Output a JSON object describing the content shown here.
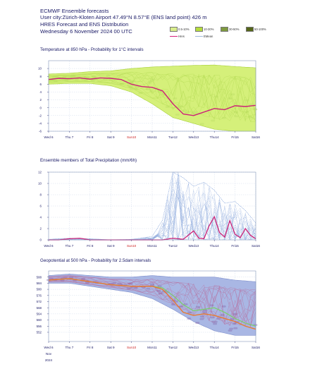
{
  "header": {
    "title": "ECMWF Ensemble forecasts",
    "location": "User city:Zürich-Kloten Airport 47.49°N 8.57°E (ENS land point) 426 m",
    "subtitle": "HRES Forecast and ENS Distribution",
    "date": "Wednesday 6 November 2024 00 UTC"
  },
  "legend": {
    "bands": [
      {
        "label": "0.5-10%",
        "color": "#d9ee8c"
      },
      {
        "label": "10-30%",
        "color": "#b5dd3c"
      },
      {
        "label": "30-50%",
        "color": "#7f9a40"
      },
      {
        "label": "50-100%",
        "color": "#55661a"
      }
    ],
    "lines": [
      {
        "label": "Hres",
        "color": "#d4207c"
      },
      {
        "label": "EMean",
        "color": "#9fb8d8"
      }
    ]
  },
  "colors": {
    "axis": "#1a1a66",
    "grid": "#c8d4e8",
    "sunday": "#cc2222",
    "temp_band": "#d5f07a",
    "temp_band_edge": "#a8d03a",
    "temp_inner": "#c2e26a",
    "hres": "#cc2277",
    "ens_member": "#7f9fd8",
    "z_band": "#a9b7e4",
    "z_inner": "#8a6fb0",
    "z_ctrl": "#7ad06a",
    "z_hres": "#e87a30"
  },
  "xaxis": {
    "ticks": [
      "Wed 6",
      "Thu 7",
      "Fri 8",
      "Sat 9",
      "Sun10",
      "Mon11",
      "Tue12",
      "Wed13",
      "Thu14",
      "Fri15",
      "Sat16"
    ],
    "sunday_index": 4,
    "month": "Nov",
    "year": "2024"
  },
  "chart_data": [
    {
      "type": "area",
      "title": "Temperature at 850 hPa - Probability for 1°C intervals",
      "xlabel": "",
      "ylabel": "",
      "x_unit": "days from Wed 6 Nov 2024 00 UTC",
      "xlim": [
        0,
        10
      ],
      "ylim": [
        -6,
        12
      ],
      "yticks": [
        -6,
        -4,
        -2,
        0,
        2,
        4,
        6,
        8,
        10
      ],
      "grid": true,
      "series": [
        {
          "name": "Hres",
          "x": [
            0,
            0.5,
            1,
            1.5,
            2,
            2.5,
            3,
            3.5,
            4,
            4.5,
            5,
            5.5,
            6,
            6.5,
            7,
            7.5,
            8,
            8.5,
            9,
            9.5,
            10
          ],
          "values": [
            7.2,
            7.5,
            7.4,
            7.6,
            7.3,
            7.6,
            7.5,
            7.2,
            6.0,
            5.4,
            5.2,
            4.3,
            1.0,
            -1.6,
            -2.0,
            -1.1,
            -0.2,
            -0.5,
            0.5,
            0.3,
            0.6
          ]
        },
        {
          "name": "Ensemble upper bound",
          "x": [
            0,
            1,
            2,
            3,
            4,
            5,
            6,
            7,
            8,
            9,
            10
          ],
          "values": [
            8.6,
            8.8,
            9.2,
            9.4,
            10.0,
            10.4,
            10.6,
            10.8,
            10.9,
            10.5,
            10.2
          ]
        },
        {
          "name": "Ensemble lower bound",
          "x": [
            0,
            1,
            2,
            3,
            4,
            5,
            6,
            7,
            8,
            9,
            10
          ],
          "values": [
            6.0,
            6.2,
            6.2,
            5.6,
            4.0,
            1.0,
            -2.5,
            -4.0,
            -5.5,
            -6.0,
            -6.0
          ]
        }
      ]
    },
    {
      "type": "line",
      "title": "Ensemble members of Total Precipitation (mm/6h)",
      "xlabel": "",
      "ylabel": "",
      "x_unit": "days from Wed 6 Nov 2024 00 UTC",
      "xlim": [
        0,
        10
      ],
      "ylim": [
        0,
        12
      ],
      "yticks": [
        0,
        2,
        4,
        6,
        8,
        10,
        12
      ],
      "grid": true,
      "series": [
        {
          "name": "Hres",
          "x": [
            0,
            0.5,
            1,
            1.5,
            2,
            3,
            4,
            5,
            5.5,
            6,
            6.5,
            7,
            7.25,
            7.5,
            7.75,
            8,
            8.25,
            8.5,
            8.75,
            9,
            9.25,
            9.5,
            9.75,
            10
          ],
          "values": [
            0,
            0,
            0.2,
            0.3,
            0,
            0,
            0,
            0,
            0,
            0.3,
            0.1,
            1.6,
            0.3,
            0.2,
            2.5,
            4.1,
            1.3,
            0.5,
            3.4,
            1.0,
            0.4,
            2.0,
            0.8,
            0.2
          ]
        },
        {
          "name": "Ensemble maximum",
          "x": [
            0,
            1,
            2,
            3,
            4,
            5,
            5.5,
            6,
            6.5,
            7,
            7.5,
            8,
            8.5,
            9,
            9.5,
            10
          ],
          "values": [
            0.1,
            0.3,
            0.2,
            0,
            0.1,
            0.6,
            3.5,
            14.3,
            11.0,
            9.5,
            10.2,
            8.8,
            6.5,
            6.8,
            5.2,
            3.0
          ]
        }
      ]
    },
    {
      "type": "area",
      "title": "Geopotential at 500 hPa - Probability for 2.5dam intervals",
      "xlabel": "",
      "ylabel": "",
      "x_unit": "days from Wed 6 Nov 2024 00 UTC",
      "xlim": [
        0,
        10
      ],
      "ylim": [
        546,
        592
      ],
      "yticks": [
        552,
        556,
        560,
        564,
        568,
        572,
        576,
        580,
        584,
        588
      ],
      "grid": true,
      "series": [
        {
          "name": "Hres",
          "x": [
            0,
            1,
            2,
            3,
            4,
            5,
            5.5,
            6,
            6.5,
            7,
            7.5,
            8,
            8.5,
            9,
            9.5,
            10
          ],
          "values": [
            586,
            587,
            585,
            583,
            582,
            582,
            580,
            573,
            565,
            563,
            564,
            563,
            561,
            559,
            556,
            554
          ]
        },
        {
          "name": "Control",
          "x": [
            0,
            1,
            2,
            3,
            4,
            5,
            5.5,
            6,
            6.5,
            7,
            7.5,
            8,
            8.5,
            9,
            9.5,
            10
          ],
          "values": [
            586,
            587,
            585,
            583,
            582,
            582,
            581,
            576,
            570,
            566,
            567,
            568,
            565,
            561,
            558,
            556
          ]
        },
        {
          "name": "Ensemble upper bound",
          "x": [
            0,
            1,
            2,
            3,
            4,
            5,
            6,
            7,
            8,
            9,
            10
          ],
          "values": [
            589,
            590,
            589,
            588,
            588,
            589,
            588,
            588,
            588,
            586,
            585
          ]
        },
        {
          "name": "Ensemble lower bound",
          "x": [
            0,
            1,
            2,
            3,
            4,
            5,
            6,
            7,
            8,
            9,
            10
          ],
          "values": [
            584,
            584,
            582,
            580,
            578,
            574,
            567,
            559,
            553,
            550,
            550
          ]
        }
      ]
    }
  ]
}
